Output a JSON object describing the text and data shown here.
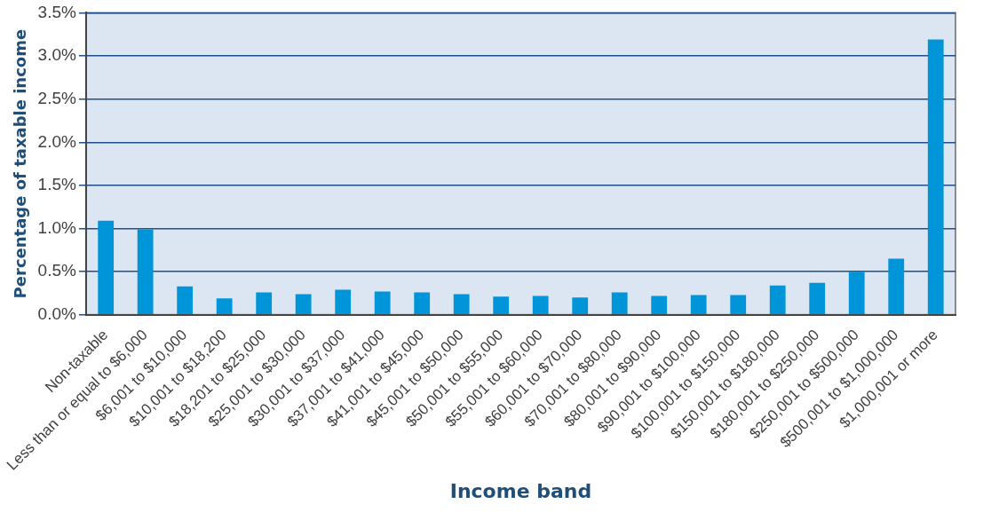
{
  "chart_data": {
    "type": "bar",
    "xlabel": "Income band",
    "ylabel": "Percentage of taxable income",
    "categories": [
      "Non-taxable",
      "Less than or equal to $6,000",
      "$6,001 to $10,000",
      "$10,001 to $18,200",
      "$18,201 to $25,000",
      "$25,001 to $30,000",
      "$30,001 to $37,000",
      "$37,001 to $41,000",
      "$41,001 to $45,000",
      "$45,001 to $50,000",
      "$50,001 to $55,000",
      "$55,001 to $60,000",
      "$60,001 to $70,000",
      "$70,001 to $80,000",
      "$80,001 to $90,000",
      "$90,001 to $100,000",
      "$100,001 to $150,000",
      "$150,001 to $180,000",
      "$180,001 to $250,000",
      "$250,001 to $500,000",
      "$500,001 to $1,000,000",
      "$1,000,001 or more"
    ],
    "values": [
      1.09,
      0.99,
      0.33,
      0.19,
      0.26,
      0.24,
      0.29,
      0.27,
      0.26,
      0.24,
      0.21,
      0.22,
      0.2,
      0.26,
      0.22,
      0.23,
      0.23,
      0.34,
      0.37,
      0.5,
      0.65,
      3.19
    ],
    "color": "#0094d9",
    "ylim": [
      0,
      3.5
    ],
    "yticks": [
      {
        "value": 0,
        "label": "0.0%"
      },
      {
        "value": 0.5,
        "label": "0.5%"
      },
      {
        "value": 1,
        "label": "1.0%"
      },
      {
        "value": 1.5,
        "label": "1.5%"
      },
      {
        "value": 2,
        "label": "2.0%"
      },
      {
        "value": 2.5,
        "label": "2.5%"
      },
      {
        "value": 3,
        "label": "3.0%"
      },
      {
        "value": 3.5,
        "label": "3.5%"
      }
    ],
    "grid": "y",
    "legend": false
  }
}
